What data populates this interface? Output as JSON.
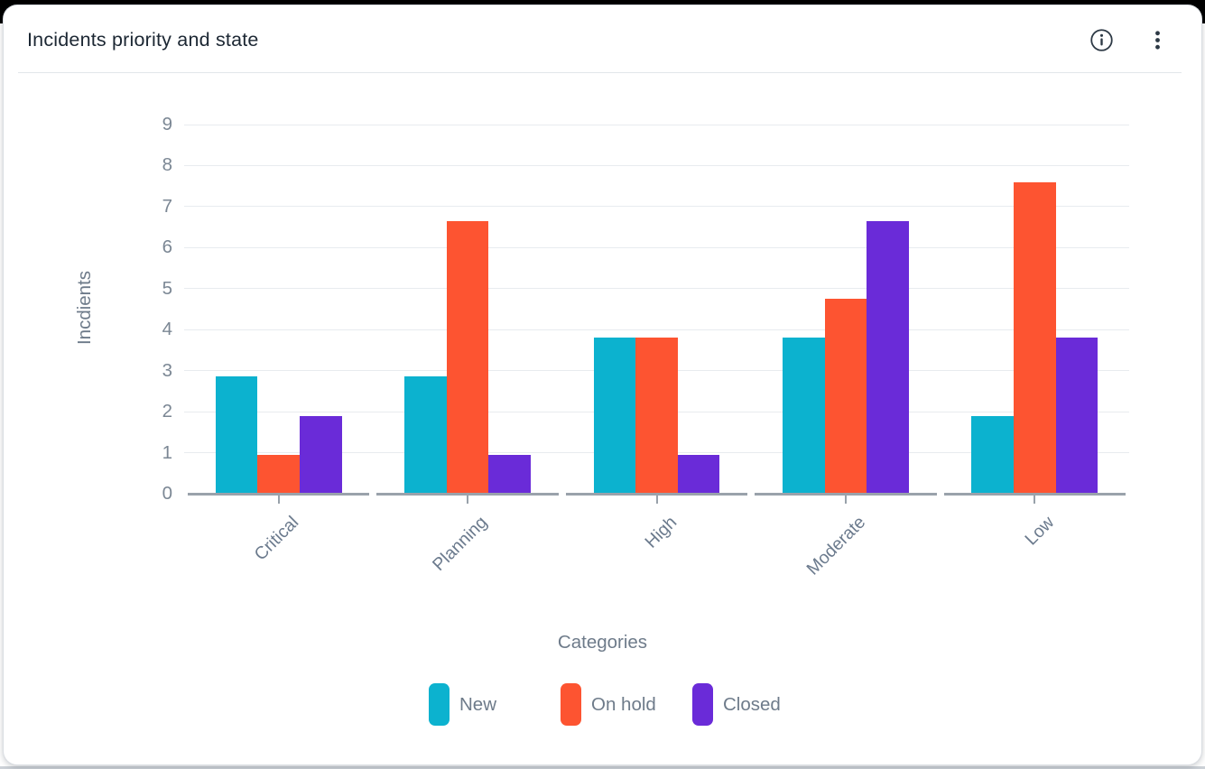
{
  "header": {
    "title": "Incidents priority and state",
    "actions": [
      {
        "icon": "info-icon"
      },
      {
        "icon": "kebab-menu-icon"
      }
    ]
  },
  "chart_data": {
    "type": "bar",
    "title": "Incidents priority and state",
    "xlabel": "Categories",
    "ylabel": "Incdients",
    "categories": [
      "Critical",
      "Planning",
      "High",
      "Moderate",
      "Low"
    ],
    "series": [
      {
        "name": "New",
        "color": "#0cb2cf",
        "values": [
          3,
          3,
          4,
          4,
          2
        ]
      },
      {
        "name": "On hold",
        "color": "#fd5431",
        "values": [
          1,
          7,
          4,
          5,
          8
        ]
      },
      {
        "name": "Closed",
        "color": "#6a2bd8",
        "values": [
          2,
          1,
          1,
          7,
          4
        ]
      }
    ],
    "ylim": [
      0,
      9
    ],
    "yticks": [
      0,
      1,
      2,
      3,
      4,
      5,
      6,
      7,
      8,
      9
    ],
    "grid": true,
    "legend_position": "bottom"
  }
}
